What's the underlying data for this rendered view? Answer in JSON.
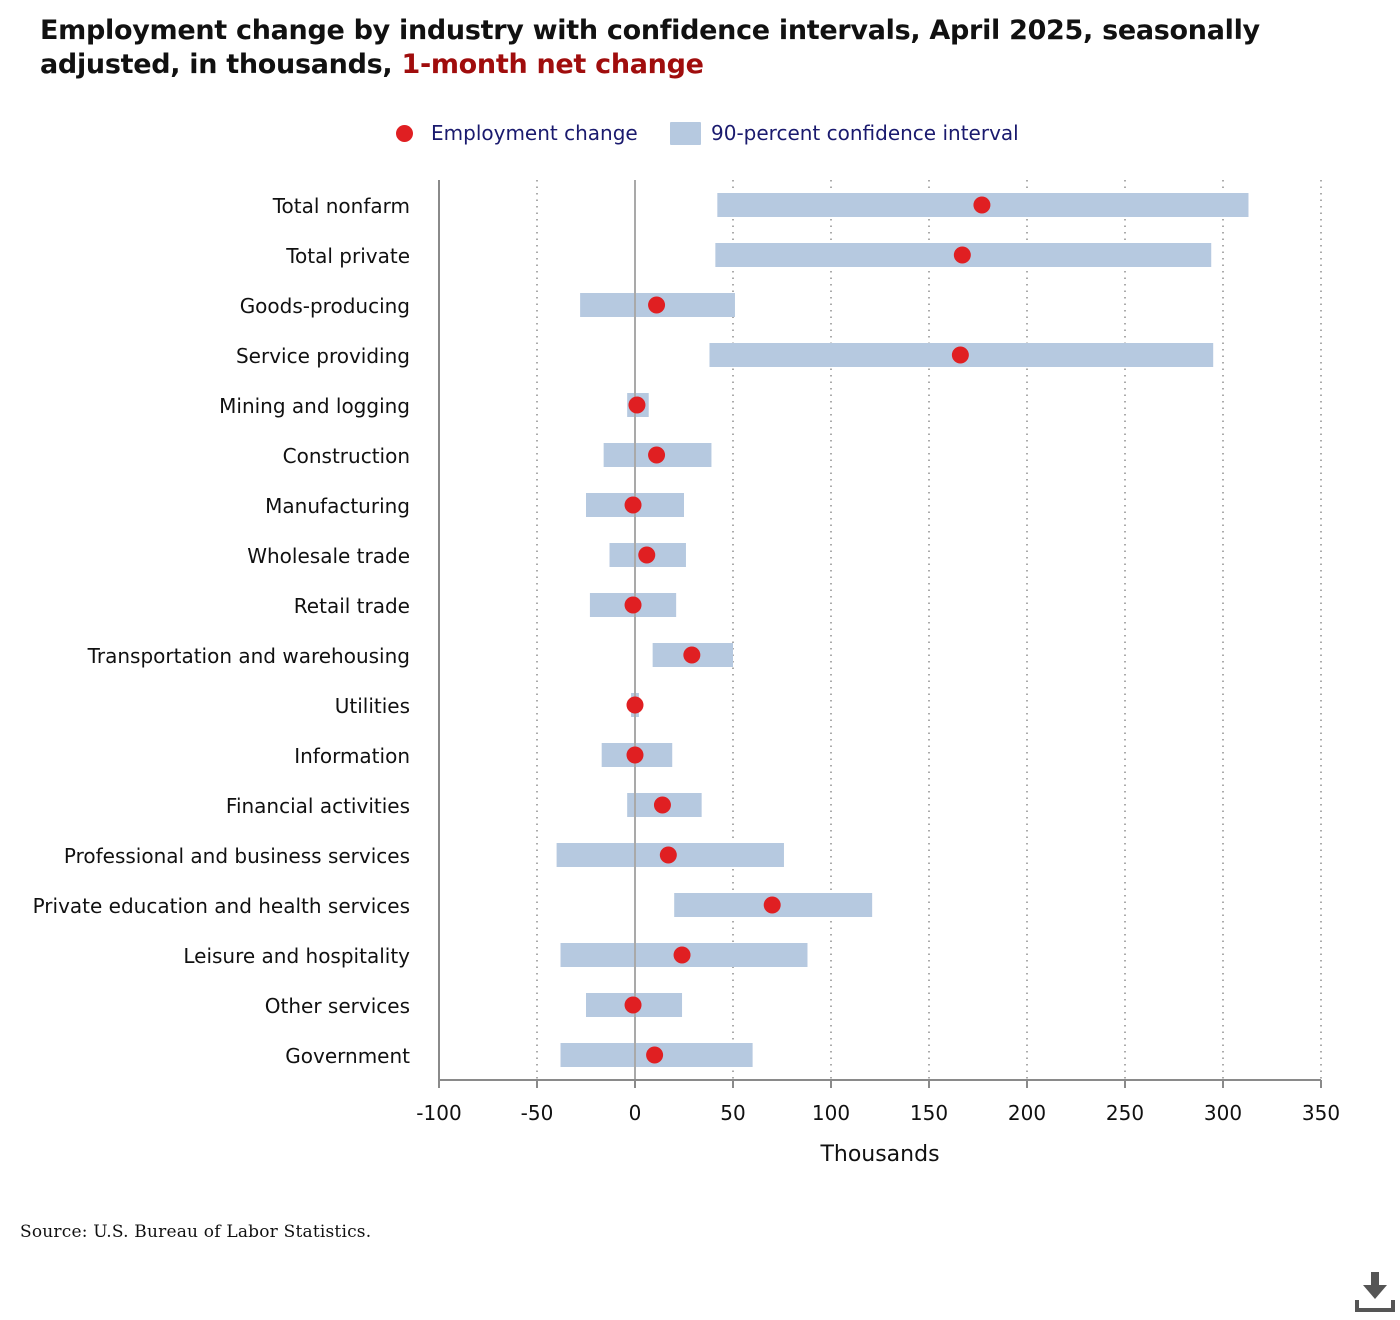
{
  "title": {
    "main": "Employment change by industry with confidence intervals, April 2025, seasonally adjusted, in thousands,",
    "highlight": "1-month net change"
  },
  "legend": {
    "point_label": "Employment change",
    "interval_label": "90-percent confidence interval"
  },
  "colors": {
    "point": "#e01f22",
    "interval": "#b6c9e0",
    "highlight": "#a00d0d",
    "legend_text": "#1a1a6e"
  },
  "chart_data": {
    "type": "dot-interval",
    "xlabel": "Thousands",
    "xlim": [
      -100,
      350
    ],
    "xticks": [
      -100,
      -50,
      0,
      50,
      100,
      150,
      200,
      250,
      300,
      350
    ],
    "grid": "vertical dotted",
    "legend_position": "top-center",
    "categories": [
      "Total nonfarm",
      "Total private",
      "Goods-producing",
      "Service providing",
      "Mining and logging",
      "Construction",
      "Manufacturing",
      "Wholesale trade",
      "Retail trade",
      "Transportation and warehousing",
      "Utilities",
      "Information",
      "Financial activities",
      "Professional and business services",
      "Private education and health services",
      "Leisure and hospitality",
      "Other services",
      "Government"
    ],
    "series": [
      {
        "name": "Employment change",
        "values": [
          177,
          167,
          11,
          166,
          1,
          11,
          -1,
          6,
          -1,
          29,
          0,
          0,
          14,
          17,
          70,
          24,
          -1,
          10
        ]
      },
      {
        "name": "90-percent confidence interval",
        "low": [
          42,
          41,
          -28,
          38,
          -4,
          -16,
          -25,
          -13,
          -23,
          9,
          -2,
          -17,
          -4,
          -40,
          20,
          -38,
          -25,
          -38
        ],
        "high": [
          313,
          294,
          51,
          295,
          7,
          39,
          25,
          26,
          21,
          50,
          2,
          19,
          34,
          76,
          121,
          88,
          24,
          60
        ]
      }
    ]
  },
  "source": "Source: U.S. Bureau of Labor Statistics.",
  "download": {
    "icon": "download-icon"
  }
}
